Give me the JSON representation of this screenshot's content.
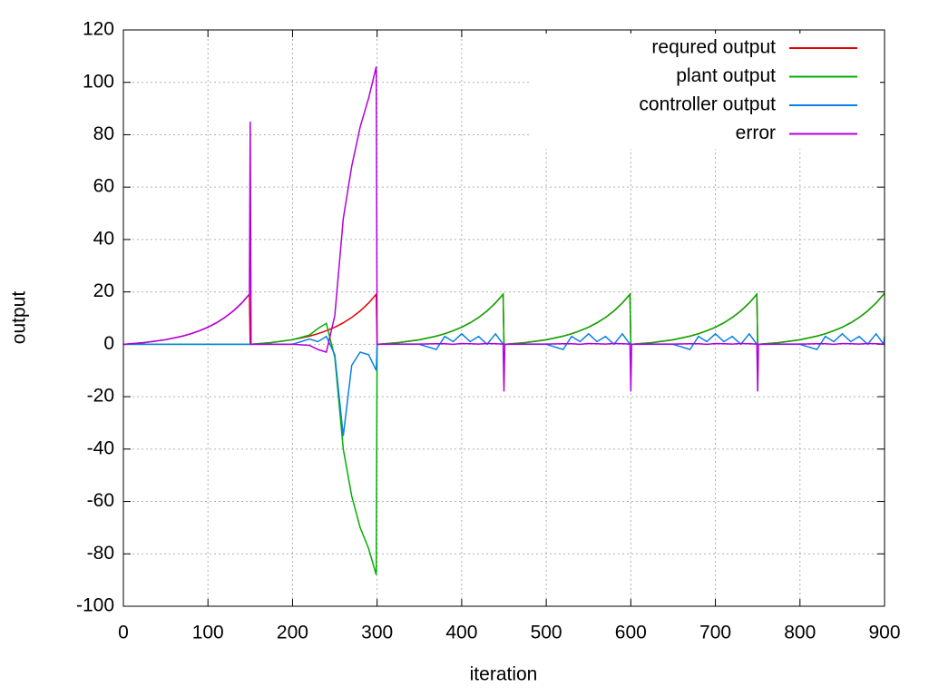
{
  "chart_data": {
    "type": "line",
    "x_label": "iteration",
    "y_label": "output",
    "x": [
      0,
      1,
      25,
      50,
      70,
      80,
      90,
      100,
      110,
      120,
      130,
      140,
      149,
      150,
      151,
      175,
      200,
      220,
      230,
      240,
      250,
      260,
      270,
      280,
      290,
      299,
      300,
      301,
      325,
      350,
      370,
      380,
      390,
      400,
      410,
      420,
      430,
      440,
      449,
      450,
      451,
      475,
      500,
      520,
      530,
      540,
      550,
      560,
      570,
      580,
      590,
      599,
      600,
      601,
      625,
      650,
      670,
      680,
      690,
      700,
      710,
      720,
      730,
      740,
      749,
      750,
      751,
      775,
      800,
      820,
      830,
      840,
      850,
      860,
      870,
      880,
      890,
      899,
      900
    ],
    "series": [
      {
        "name": "requred output",
        "color": "#e00000",
        "values": [
          0,
          0.01,
          0.66,
          1.75,
          3.12,
          4.04,
          5.16,
          6.53,
          8.2,
          10.24,
          12.73,
          15.78,
          19.1,
          0,
          0.01,
          0.66,
          1.75,
          3.12,
          4.04,
          5.16,
          6.53,
          8.2,
          10.24,
          12.73,
          15.78,
          19.1,
          0,
          0.01,
          0.66,
          1.75,
          3.12,
          4.04,
          5.16,
          6.53,
          8.2,
          10.24,
          12.73,
          15.78,
          19.1,
          0,
          0.01,
          0.66,
          1.75,
          3.12,
          4.04,
          5.16,
          6.53,
          8.2,
          10.24,
          12.73,
          15.78,
          19.1,
          0,
          0.01,
          0.66,
          1.75,
          3.12,
          4.04,
          5.16,
          6.53,
          8.2,
          10.24,
          12.73,
          15.78,
          19.1,
          0,
          0.01,
          0.66,
          1.75,
          3.12,
          4.04,
          5.16,
          6.53,
          8.2,
          10.24,
          12.73,
          15.78,
          19.1,
          19.5
        ]
      },
      {
        "name": "plant output",
        "color": "#00b000",
        "values": [
          0,
          0,
          0,
          0,
          0,
          0,
          0,
          0,
          0,
          0,
          0,
          0,
          0,
          0,
          0,
          0.66,
          1.75,
          3.5,
          6,
          8,
          -5,
          -40,
          -58,
          -70,
          -78,
          -88,
          0,
          0,
          0.6,
          1.7,
          3.1,
          4.0,
          5.2,
          6.5,
          8.2,
          10.2,
          12.7,
          15.8,
          19.1,
          0,
          0,
          0.6,
          1.7,
          3.1,
          4.0,
          5.2,
          6.5,
          8.2,
          10.2,
          12.7,
          15.8,
          19.1,
          0,
          0,
          0.6,
          1.7,
          3.1,
          4.0,
          5.2,
          6.5,
          8.2,
          10.2,
          12.7,
          15.8,
          19.1,
          0,
          0,
          0.6,
          1.7,
          3.1,
          4.0,
          5.2,
          6.5,
          8.2,
          10.2,
          12.7,
          15.8,
          19.1,
          19.5
        ]
      },
      {
        "name": "controller output",
        "color": "#0a80e0",
        "values": [
          0,
          0,
          0,
          0,
          0,
          0,
          0,
          0,
          0,
          0,
          0,
          0,
          0,
          0,
          0,
          0,
          0,
          2,
          1,
          3,
          -4,
          -35,
          -8,
          -3,
          -4,
          -10,
          0,
          0,
          0,
          0,
          -2,
          3,
          1,
          4,
          1,
          3,
          0,
          4,
          0,
          0,
          0,
          0,
          0,
          -2,
          3,
          1,
          4,
          1,
          3,
          0,
          4,
          0,
          0,
          0,
          0,
          0,
          -2,
          3,
          1,
          4,
          1,
          3,
          0,
          4,
          0,
          0,
          0,
          0,
          0,
          -2,
          3,
          1,
          4,
          1,
          3,
          0,
          4,
          0,
          3
        ]
      },
      {
        "name": "error",
        "color": "#b000e0",
        "values": [
          0,
          0.01,
          0.66,
          1.75,
          3.12,
          4.04,
          5.16,
          6.53,
          8.2,
          10.24,
          12.73,
          15.78,
          19.1,
          85,
          0,
          0,
          0,
          -0.4,
          -2,
          -3,
          11,
          48,
          68,
          83,
          94,
          106,
          0,
          0,
          0.1,
          0.1,
          0.2,
          0.2,
          0,
          0.3,
          0.2,
          0.1,
          0.3,
          0.2,
          0.1,
          -18,
          0,
          0.1,
          0.1,
          0.2,
          0.2,
          0,
          0.3,
          0.2,
          0.1,
          0.3,
          0.2,
          0.1,
          -18,
          0,
          0.1,
          0.1,
          0.2,
          0.2,
          0,
          0.3,
          0.2,
          0.1,
          0.3,
          0.2,
          0.1,
          -18,
          0,
          0.1,
          0.1,
          0.2,
          0.2,
          0,
          0.3,
          0.2,
          0.1,
          0.3,
          0.2,
          0.1,
          0
        ]
      }
    ],
    "xlim": [
      0,
      900
    ],
    "ylim": [
      -100,
      120
    ],
    "xticks": [
      0,
      100,
      200,
      300,
      400,
      500,
      600,
      700,
      800,
      900
    ],
    "yticks": [
      -100,
      -80,
      -60,
      -40,
      -20,
      0,
      20,
      40,
      60,
      80,
      100,
      120
    ],
    "grid": true,
    "legend": "top-right"
  }
}
